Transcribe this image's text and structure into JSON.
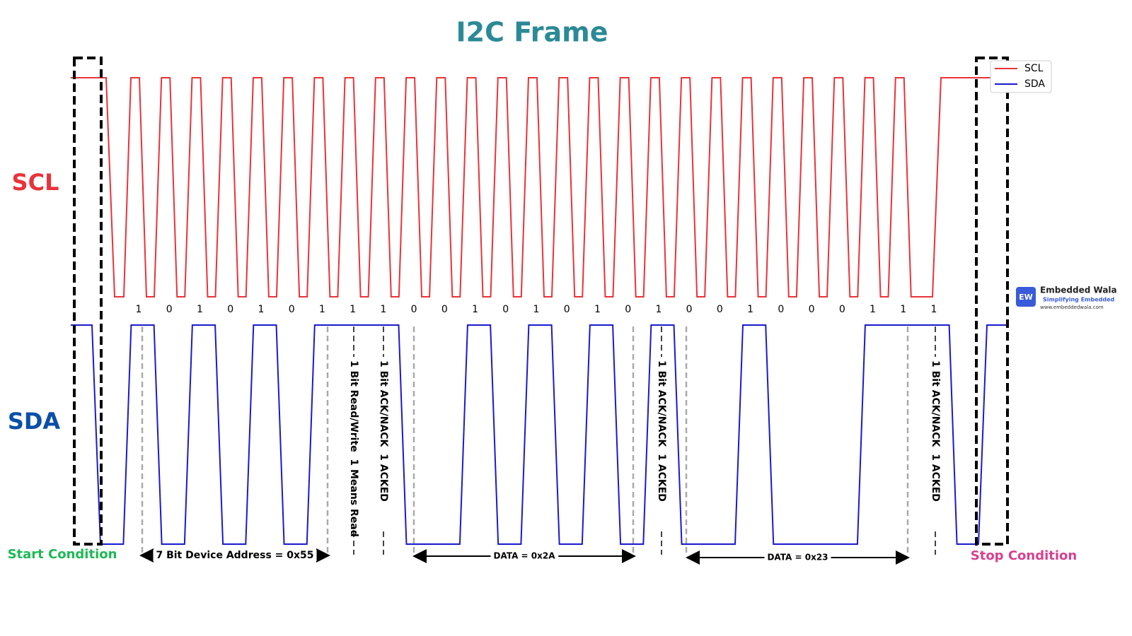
{
  "title": "I2C Frame",
  "signals": {
    "scl": "SCL",
    "sda": "SDA"
  },
  "legend": [
    "SCL",
    "SDA"
  ],
  "bits": [
    1,
    0,
    1,
    0,
    1,
    0,
    1,
    1,
    1,
    0,
    0,
    1,
    0,
    1,
    0,
    1,
    0,
    1,
    0,
    0,
    1,
    0,
    0,
    0,
    1,
    1,
    1
  ],
  "vertical_notes": [
    "1 Bit Read/Write  1 Means Read",
    "1 Bit ACK/NACK  1 ACKED",
    "1 Bit ACK/NACK  1 ACKED",
    "1 Bit ACK/NACK  1 ACKED"
  ],
  "ranges": [
    "7 Bit Device Address = 0x55",
    "DATA = 0x2A",
    "DATA = 0x23"
  ],
  "conditions": {
    "start": "Start Condition",
    "stop": "Stop Condition"
  },
  "logo": {
    "icon": "EW",
    "name": "Embedded Wala",
    "tagline": "Simplifying Embedded",
    "url": "www.embeddedwala.com"
  }
}
